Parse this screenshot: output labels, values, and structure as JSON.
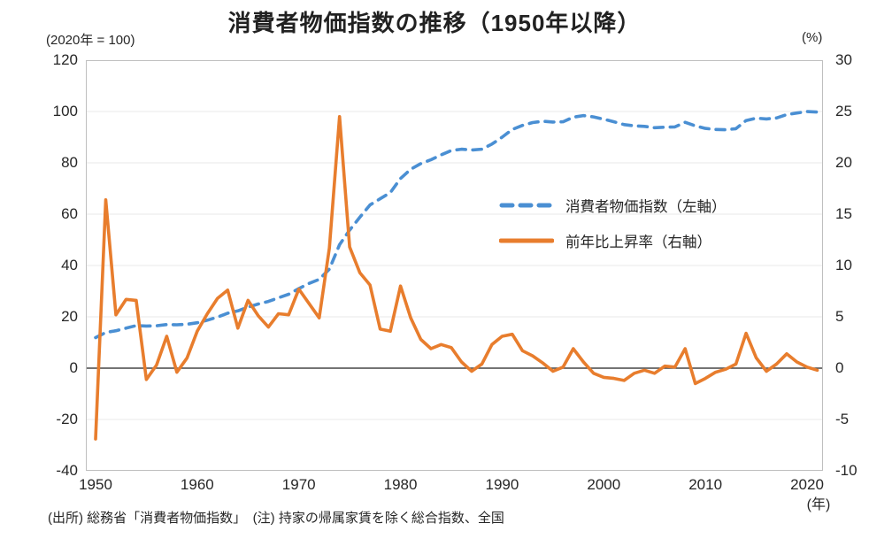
{
  "chart_data": {
    "type": "line",
    "title": "消費者物価指数の推移（1950年以降）",
    "footnote": "(出所) 総務省「消費者物価指数」　(注) 持家の帰属家賃を除く総合指数、全国",
    "grid": true,
    "legend_position": "inside-right",
    "colors": {
      "cpi_line": "#4a8fd3",
      "inflation_line": "#e87d2d",
      "gridline": "#e9e9e9",
      "zero_line": "#474747",
      "plot_border": "#bfbfbf",
      "text": "#262626"
    },
    "x_axis": {
      "unit_label": "(年)",
      "min": 1950,
      "max": 2021,
      "ticks": [
        1950,
        1960,
        1970,
        1980,
        1990,
        2000,
        2010,
        2020
      ]
    },
    "left_axis": {
      "unit_label": "(2020年 = 100)",
      "min": -40,
      "max": 120,
      "ticks": [
        120,
        100,
        80,
        60,
        40,
        20,
        0,
        -20,
        -40
      ]
    },
    "right_axis": {
      "unit_label": "(%)",
      "min": -10,
      "max": 30,
      "ticks": [
        30,
        25,
        20,
        15,
        10,
        5,
        0,
        -5,
        -10
      ]
    },
    "x": [
      1950,
      1951,
      1952,
      1953,
      1954,
      1955,
      1956,
      1957,
      1958,
      1959,
      1960,
      1961,
      1962,
      1963,
      1964,
      1965,
      1966,
      1967,
      1968,
      1969,
      1970,
      1971,
      1972,
      1973,
      1974,
      1975,
      1976,
      1977,
      1978,
      1979,
      1980,
      1981,
      1982,
      1983,
      1984,
      1985,
      1986,
      1987,
      1988,
      1989,
      1990,
      1991,
      1992,
      1993,
      1994,
      1995,
      1996,
      1997,
      1998,
      1999,
      2000,
      2001,
      2002,
      2003,
      2004,
      2005,
      2006,
      2007,
      2008,
      2009,
      2010,
      2011,
      2012,
      2013,
      2014,
      2015,
      2016,
      2017,
      2018,
      2019,
      2020,
      2021
    ],
    "series": [
      {
        "name": "消費者物価指数（左軸）",
        "axis": "left",
        "style": "dashed",
        "color": "#4a8fd3",
        "values": [
          11.9,
          13.9,
          14.6,
          15.6,
          16.6,
          16.4,
          16.5,
          17.0,
          16.9,
          17.1,
          17.7,
          18.7,
          19.9,
          21.4,
          22.3,
          23.8,
          25.0,
          26.0,
          27.4,
          28.8,
          31.0,
          33.0,
          34.6,
          38.6,
          48.1,
          53.8,
          58.8,
          63.6,
          66.0,
          68.4,
          73.9,
          77.5,
          79.7,
          81.2,
          83.1,
          84.8,
          85.3,
          85.0,
          85.3,
          87.3,
          90.0,
          93.0,
          94.6,
          95.7,
          96.2,
          95.9,
          96.0,
          97.8,
          98.4,
          97.9,
          97.0,
          96.0,
          94.9,
          94.4,
          94.2,
          93.7,
          93.9,
          94.0,
          95.8,
          94.4,
          93.4,
          93.0,
          92.9,
          93.3,
          96.5,
          97.4,
          97.1,
          97.5,
          98.8,
          99.4,
          100.0,
          99.8
        ]
      },
      {
        "name": "前年比上昇率（右軸）",
        "axis": "right",
        "style": "solid",
        "color": "#e87d2d",
        "values": [
          -6.9,
          16.4,
          5.2,
          6.7,
          6.6,
          -1.1,
          0.3,
          3.1,
          -0.4,
          1.0,
          3.6,
          5.3,
          6.8,
          7.6,
          3.9,
          6.6,
          5.1,
          4.0,
          5.3,
          5.2,
          7.7,
          6.3,
          4.9,
          11.7,
          24.5,
          11.8,
          9.3,
          8.1,
          3.8,
          3.6,
          8.0,
          4.9,
          2.8,
          1.9,
          2.3,
          2.0,
          0.6,
          -0.3,
          0.4,
          2.3,
          3.1,
          3.3,
          1.7,
          1.2,
          0.5,
          -0.3,
          0.1,
          1.9,
          0.6,
          -0.5,
          -0.9,
          -1.0,
          -1.2,
          -0.5,
          -0.2,
          -0.5,
          0.2,
          0.1,
          1.9,
          -1.5,
          -1.0,
          -0.4,
          -0.1,
          0.4,
          3.4,
          1.0,
          -0.3,
          0.4,
          1.4,
          0.6,
          0.1,
          -0.2
        ]
      }
    ]
  }
}
